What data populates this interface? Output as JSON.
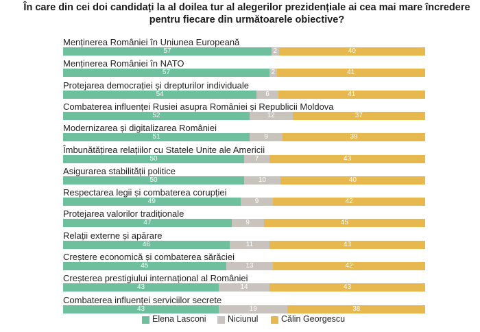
{
  "title_line1": "În care din cei doi candidați la al doilea tur al alegerilor prezidențiale ai cea mai mare încredere",
  "title_line2": "pentru fiecare din următoarele obiective?",
  "colors": {
    "lasconi": "#6dbf9e",
    "niciunul": "#c9c3bd",
    "georgescu": "#e6b84e"
  },
  "chart_data": {
    "type": "bar",
    "stacked": true,
    "orientation": "horizontal",
    "categories": [
      "Menținerea României în Uniunea Europeană",
      "Menținerea României în NATO",
      "Protejarea democrației și drepturilor individuale",
      "Combaterea influenței Rusiei asupra României și Republicii Moldova",
      "Modernizarea și digitalizarea României",
      "Îmbunătățirea relațiilor cu Statele Unite ale Americii",
      "Asigurarea stabilității politice",
      "Respectarea legii și combaterea corupției",
      "Protejarea valorilor tradiționale",
      "Relații externe și apărare",
      "Creștere economică și combaterea sărăciei",
      "Creșterea prestigiului internațional al României",
      "Combaterea influenței serviciilor secrete"
    ],
    "series": [
      {
        "name": "Elena Lasconi",
        "values": [
          57,
          57,
          54,
          52,
          51,
          50,
          50,
          49,
          47,
          46,
          45,
          43,
          43
        ]
      },
      {
        "name": "Niciunul",
        "values": [
          2,
          2,
          6,
          12,
          9,
          7,
          10,
          9,
          9,
          11,
          13,
          14,
          19
        ]
      },
      {
        "name": "Călin Georgescu",
        "values": [
          40,
          41,
          41,
          37,
          39,
          43,
          40,
          42,
          45,
          43,
          42,
          43,
          38
        ]
      }
    ],
    "legend_position": "bottom"
  }
}
